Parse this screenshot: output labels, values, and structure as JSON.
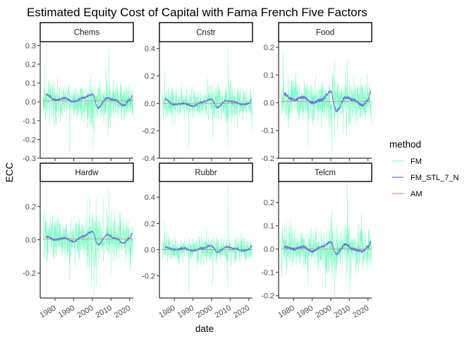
{
  "chart_data": {
    "type": "line",
    "title": "Estimated Equity Cost of Capital with Fama French Five Factors",
    "xlabel": "date",
    "ylabel": "ECC",
    "xlim": [
      1972,
      2022
    ],
    "x_ticks": [
      "1980",
      "1990",
      "2000",
      "2010",
      "2020"
    ],
    "legend": {
      "title": "method",
      "position": "right",
      "entries": [
        {
          "name": "FM",
          "color": "#7fffc4"
        },
        {
          "name": "FM_STL_7_N",
          "color": "#6b72e8"
        },
        {
          "name": "AM",
          "color": "#f08080"
        }
      ]
    },
    "series_colors": {
      "FM": "#7fffc4",
      "FM_STL_7_N": "#6b72e8",
      "AM": "#f08080"
    },
    "grid": false,
    "panels": [
      {
        "name": "Chems",
        "ylim": [
          -0.3,
          0.32
        ],
        "y_ticks": [
          -0.3,
          -0.2,
          -0.1,
          0.0,
          0.1,
          0.2,
          0.3
        ],
        "y_tick_labels": [
          "-0.3",
          "-0.2",
          "-0.1",
          "0.0",
          "0.1",
          "0.2",
          "0.3"
        ],
        "fm_amplitude": 0.07,
        "fm_extremes": [
          [
            1987.8,
            -0.27
          ],
          [
            2000.4,
            -0.24
          ],
          [
            2008.9,
            0.28
          ],
          [
            2008.6,
            -0.18
          ],
          [
            1974.6,
            0.2
          ]
        ],
        "stl_points": [
          [
            1975,
            0.04
          ],
          [
            1980,
            0.01
          ],
          [
            1985,
            0.02
          ],
          [
            1990,
            0.0
          ],
          [
            1995,
            0.02
          ],
          [
            2000,
            0.04
          ],
          [
            2003,
            -0.03
          ],
          [
            2008,
            0.02
          ],
          [
            2012,
            0.01
          ],
          [
            2017,
            -0.02
          ],
          [
            2020,
            0.01
          ],
          [
            2021.5,
            0.03
          ]
        ],
        "am_value": 0.005
      },
      {
        "name": "Cnstr",
        "ylim": [
          -0.4,
          0.45
        ],
        "y_ticks": [
          -0.4,
          -0.2,
          0.0,
          0.2,
          0.4
        ],
        "y_tick_labels": [
          "-0.4",
          "-0.2",
          "0.0",
          "0.2",
          "0.4"
        ],
        "fm_amplitude": 0.08,
        "fm_extremes": [
          [
            2009.0,
            0.41
          ],
          [
            1987.8,
            -0.33
          ],
          [
            2008.7,
            -0.32
          ],
          [
            2000.5,
            -0.26
          ],
          [
            1974.8,
            0.24
          ]
        ],
        "stl_points": [
          [
            1975,
            0.03
          ],
          [
            1980,
            -0.01
          ],
          [
            1985,
            0.0
          ],
          [
            1990,
            -0.02
          ],
          [
            1995,
            0.01
          ],
          [
            2000,
            0.03
          ],
          [
            2003,
            -0.03
          ],
          [
            2008,
            0.02
          ],
          [
            2012,
            0.01
          ],
          [
            2017,
            -0.01
          ],
          [
            2020,
            0.0
          ],
          [
            2021.5,
            0.03
          ]
        ],
        "am_value": 0.0
      },
      {
        "name": "Food",
        "ylim": [
          -0.2,
          0.22
        ],
        "y_ticks": [
          -0.2,
          -0.1,
          0.0,
          0.1,
          0.2
        ],
        "y_tick_labels": [
          "-0.2",
          "-0.1",
          "0.0",
          "0.1",
          "0.2"
        ],
        "fm_amplitude": 0.05,
        "fm_extremes": [
          [
            1974.4,
            0.19
          ],
          [
            1987.8,
            -0.16
          ],
          [
            2000.6,
            -0.18
          ],
          [
            2008.8,
            0.16
          ],
          [
            2002.2,
            0.15
          ]
        ],
        "stl_points": [
          [
            1975,
            0.03
          ],
          [
            1980,
            0.01
          ],
          [
            1985,
            0.02
          ],
          [
            1990,
            0.0
          ],
          [
            1995,
            0.01
          ],
          [
            2000,
            0.04
          ],
          [
            2003,
            -0.03
          ],
          [
            2008,
            0.02
          ],
          [
            2012,
            0.01
          ],
          [
            2017,
            -0.01
          ],
          [
            2020,
            0.01
          ],
          [
            2021.5,
            0.04
          ]
        ],
        "am_value": 0.005
      },
      {
        "name": "Hardw",
        "ylim": [
          -0.35,
          0.35
        ],
        "y_ticks": [
          -0.2,
          0.0,
          0.2
        ],
        "y_tick_labels": [
          "-0.2",
          "0.0",
          "0.2"
        ],
        "fm_amplitude": 0.09,
        "fm_extremes": [
          [
            2000.8,
            -0.33
          ],
          [
            2008.9,
            0.3
          ],
          [
            2002.1,
            -0.28
          ],
          [
            1998.5,
            0.26
          ],
          [
            1987.8,
            -0.25
          ]
        ],
        "stl_points": [
          [
            1975,
            0.02
          ],
          [
            1980,
            0.0
          ],
          [
            1985,
            0.01
          ],
          [
            1990,
            -0.01
          ],
          [
            1995,
            0.02
          ],
          [
            2000,
            0.05
          ],
          [
            2003,
            -0.03
          ],
          [
            2008,
            0.03
          ],
          [
            2012,
            0.01
          ],
          [
            2017,
            -0.02
          ],
          [
            2020,
            0.01
          ],
          [
            2021.5,
            0.04
          ]
        ],
        "am_value": 0.005
      },
      {
        "name": "Rubbr",
        "ylim": [
          -0.37,
          0.52
        ],
        "y_ticks": [
          -0.2,
          0.0,
          0.2,
          0.4
        ],
        "y_tick_labels": [
          "-0.2",
          "0.0",
          "0.2",
          "0.4"
        ],
        "fm_amplitude": 0.07,
        "fm_extremes": [
          [
            2009.0,
            0.49
          ],
          [
            1987.8,
            -0.34
          ],
          [
            2000.5,
            -0.28
          ],
          [
            2008.7,
            -0.29
          ],
          [
            1975.0,
            0.22
          ]
        ],
        "stl_points": [
          [
            1975,
            0.02
          ],
          [
            1980,
            0.0
          ],
          [
            1985,
            0.01
          ],
          [
            1990,
            -0.01
          ],
          [
            1995,
            0.01
          ],
          [
            2000,
            0.03
          ],
          [
            2003,
            -0.02
          ],
          [
            2008,
            0.02
          ],
          [
            2012,
            0.01
          ],
          [
            2017,
            -0.01
          ],
          [
            2020,
            0.0
          ],
          [
            2021.5,
            0.03
          ]
        ],
        "am_value": 0.0
      },
      {
        "name": "Telcm",
        "ylim": [
          -0.21,
          0.29
        ],
        "y_ticks": [
          -0.2,
          -0.1,
          0.0,
          0.1,
          0.2
        ],
        "y_tick_labels": [
          "-0.2",
          "-0.1",
          "0.0",
          "0.1",
          "0.2"
        ],
        "fm_amplitude": 0.06,
        "fm_extremes": [
          [
            2008.9,
            0.28
          ],
          [
            2002.0,
            -0.2
          ],
          [
            2010.2,
            -0.18
          ],
          [
            1987.8,
            -0.16
          ],
          [
            2000.7,
            0.17
          ]
        ],
        "stl_points": [
          [
            1975,
            0.01
          ],
          [
            1980,
            0.0
          ],
          [
            1985,
            0.01
          ],
          [
            1990,
            -0.01
          ],
          [
            1995,
            0.01
          ],
          [
            2000,
            0.03
          ],
          [
            2003,
            -0.02
          ],
          [
            2008,
            0.02
          ],
          [
            2012,
            0.0
          ],
          [
            2017,
            -0.01
          ],
          [
            2020,
            0.01
          ],
          [
            2021.5,
            0.03
          ]
        ],
        "am_value": 0.0
      }
    ]
  }
}
